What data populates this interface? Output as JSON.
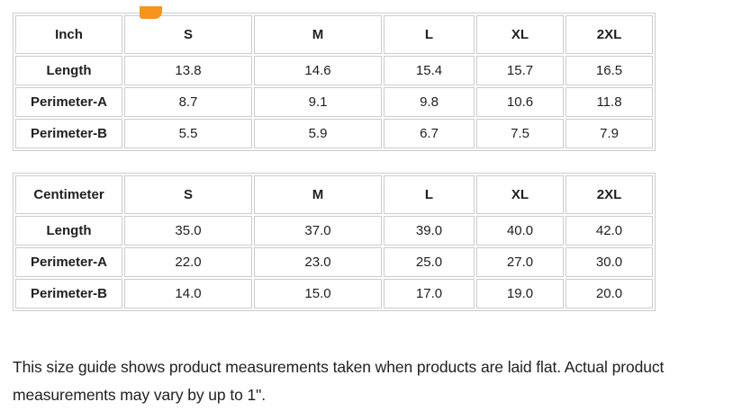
{
  "colors": {
    "accent_orange": "#f7941d",
    "table_border": "#cccccc",
    "text": "#1f1f1f"
  },
  "size_guide": {
    "tables": [
      {
        "unit": "Inch",
        "sizes": [
          "S",
          "M",
          "L",
          "XL",
          "2XL"
        ],
        "rows": [
          {
            "label": "Length",
            "values": [
              "13.8",
              "14.6",
              "15.4",
              "15.7",
              "16.5"
            ]
          },
          {
            "label": "Perimeter-A",
            "values": [
              "8.7",
              "9.1",
              "9.8",
              "10.6",
              "11.8"
            ]
          },
          {
            "label": "Perimeter-B",
            "values": [
              "5.5",
              "5.9",
              "6.7",
              "7.5",
              "7.9"
            ]
          }
        ]
      },
      {
        "unit": "Centimeter",
        "sizes": [
          "S",
          "M",
          "L",
          "XL",
          "2XL"
        ],
        "rows": [
          {
            "label": "Length",
            "values": [
              "35.0",
              "37.0",
              "39.0",
              "40.0",
              "42.0"
            ]
          },
          {
            "label": "Perimeter-A",
            "values": [
              "22.0",
              "23.0",
              "25.0",
              "27.0",
              "30.0"
            ]
          },
          {
            "label": "Perimeter-B",
            "values": [
              "14.0",
              "15.0",
              "17.0",
              "19.0",
              "20.0"
            ]
          }
        ]
      }
    ],
    "note": "This size guide shows product measurements taken when products are laid flat. Actual product measurements may vary by up to 1\"."
  }
}
